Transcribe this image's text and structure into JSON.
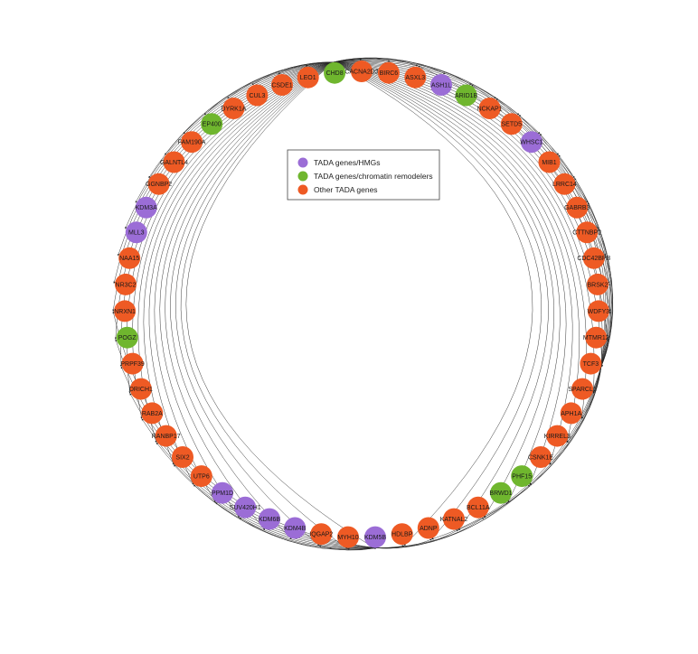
{
  "colors": {
    "hmg": "#9b6dd6",
    "remodeler": "#6fb62e",
    "other": "#ee5a24",
    "edge": "#222222"
  },
  "legend": [
    {
      "category": "hmg",
      "label": "TADA genes/HMGs"
    },
    {
      "category": "remodeler",
      "label": "TADA genes/chromatin remodelers"
    },
    {
      "category": "other",
      "label": "Other TADA genes"
    }
  ],
  "nodes": [
    {
      "id": "CACNA2D3",
      "category": "other"
    },
    {
      "id": "BIRC6",
      "category": "other"
    },
    {
      "id": "ASXL3",
      "category": "other"
    },
    {
      "id": "ASH1L",
      "category": "hmg"
    },
    {
      "id": "ARID1B",
      "category": "remodeler"
    },
    {
      "id": "NCKAP1",
      "category": "other"
    },
    {
      "id": "SETD5",
      "category": "other"
    },
    {
      "id": "WHSC1",
      "category": "hmg"
    },
    {
      "id": "MIB1",
      "category": "other"
    },
    {
      "id": "LRRC14",
      "category": "other"
    },
    {
      "id": "GABRB3",
      "category": "other"
    },
    {
      "id": "CTTNBP2",
      "category": "other"
    },
    {
      "id": "CDC42BPB",
      "category": "other"
    },
    {
      "id": "BRSK2",
      "category": "other"
    },
    {
      "id": "WDFY3",
      "category": "other"
    },
    {
      "id": "MTMR12",
      "category": "other"
    },
    {
      "id": "TCF3",
      "category": "other"
    },
    {
      "id": "SPARCL1",
      "category": "other"
    },
    {
      "id": "APH1A",
      "category": "other"
    },
    {
      "id": "KIRREL3",
      "category": "other"
    },
    {
      "id": "CSNK1E",
      "category": "other"
    },
    {
      "id": "PHF15",
      "category": "remodeler"
    },
    {
      "id": "BRWD1",
      "category": "remodeler"
    },
    {
      "id": "BCL11A",
      "category": "other"
    },
    {
      "id": "KATNAL2",
      "category": "other"
    },
    {
      "id": "ADNP",
      "category": "other"
    },
    {
      "id": "HDLBP",
      "category": "other"
    },
    {
      "id": "KDM5B",
      "category": "hmg"
    },
    {
      "id": "MYH10",
      "category": "other"
    },
    {
      "id": "IQGAP2",
      "category": "other"
    },
    {
      "id": "KDM4B",
      "category": "hmg"
    },
    {
      "id": "KDM6B",
      "category": "hmg"
    },
    {
      "id": "SUV420H1",
      "category": "hmg"
    },
    {
      "id": "PPM1D",
      "category": "hmg"
    },
    {
      "id": "UTP6",
      "category": "other"
    },
    {
      "id": "SIX2",
      "category": "other"
    },
    {
      "id": "RANBP17",
      "category": "other"
    },
    {
      "id": "RAB2A",
      "category": "other"
    },
    {
      "id": "DRICH1",
      "category": "other"
    },
    {
      "id": "PRPF39",
      "category": "other"
    },
    {
      "id": "POGZ",
      "category": "remodeler"
    },
    {
      "id": "NRXN1",
      "category": "other"
    },
    {
      "id": "NR3C2",
      "category": "other"
    },
    {
      "id": "NAA15",
      "category": "other"
    },
    {
      "id": "MLL3",
      "category": "hmg"
    },
    {
      "id": "KDM3A",
      "category": "hmg"
    },
    {
      "id": "GGNBP2",
      "category": "other"
    },
    {
      "id": "GALNTL4",
      "category": "other"
    },
    {
      "id": "FAM190A",
      "category": "other"
    },
    {
      "id": "EP400",
      "category": "remodeler"
    },
    {
      "id": "DYRK1A",
      "category": "other"
    },
    {
      "id": "CUL3",
      "category": "other"
    },
    {
      "id": "CSDE1",
      "category": "other"
    },
    {
      "id": "LEO1",
      "category": "other"
    },
    {
      "id": "CHD8",
      "category": "remodeler"
    }
  ],
  "edges": {
    "CHD8": [
      "CACNA2D3",
      "BIRC6",
      "ASXL3",
      "ASH1L",
      "ARID1B",
      "NCKAP1",
      "SETD5",
      "WHSC1",
      "MIB1",
      "LRRC14",
      "GABRB3",
      "CTTNBP2",
      "CDC42BPB",
      "BRSK2",
      "WDFY3",
      "MTMR12",
      "TCF3",
      "SPARCL1",
      "APH1A",
      "KIRREL3",
      "CSNK1E",
      "PHF15",
      "BRWD1",
      "BCL11A",
      "KATNAL2",
      "ADNP",
      "HDLBP",
      "KDM5B",
      "MYH10",
      "IQGAP2",
      "KDM4B",
      "KDM6B",
      "SUV420H1",
      "PPM1D",
      "UTP6",
      "SIX2",
      "RANBP17",
      "RAB2A",
      "DRICH1",
      "PRPF39",
      "POGZ",
      "NRXN1",
      "NR3C2",
      "NAA15",
      "MLL3",
      "KDM3A",
      "GGNBP2",
      "GALNTL4",
      "FAM190A",
      "EP400",
      "DYRK1A",
      "CUL3",
      "CSDE1",
      "LEO1"
    ],
    "TCF3": [
      "ASXL3",
      "ARID1B",
      "NCKAP1",
      "SETD5",
      "WHSC1",
      "MIB1",
      "LRRC14",
      "GABRB3",
      "CTTNBP2",
      "CDC42BPB",
      "BRSK2",
      "WDFY3",
      "MTMR12",
      "SPARCL1",
      "APH1A",
      "KIRREL3",
      "CSNK1E",
      "PHF15",
      "BRWD1",
      "BCL11A",
      "KATNAL2",
      "ADNP"
    ],
    "KDM5B": [
      "MYH10",
      "IQGAP2",
      "HDLBP",
      "ADNP",
      "KATNAL2",
      "BCL11A",
      "BRWD1",
      "PHF15",
      "SUV420H1",
      "PPM1D",
      "UTP6",
      "SIX2",
      "RANBP17",
      "RAB2A",
      "DRICH1",
      "PRPF39",
      "POGZ",
      "NRXN1"
    ]
  }
}
